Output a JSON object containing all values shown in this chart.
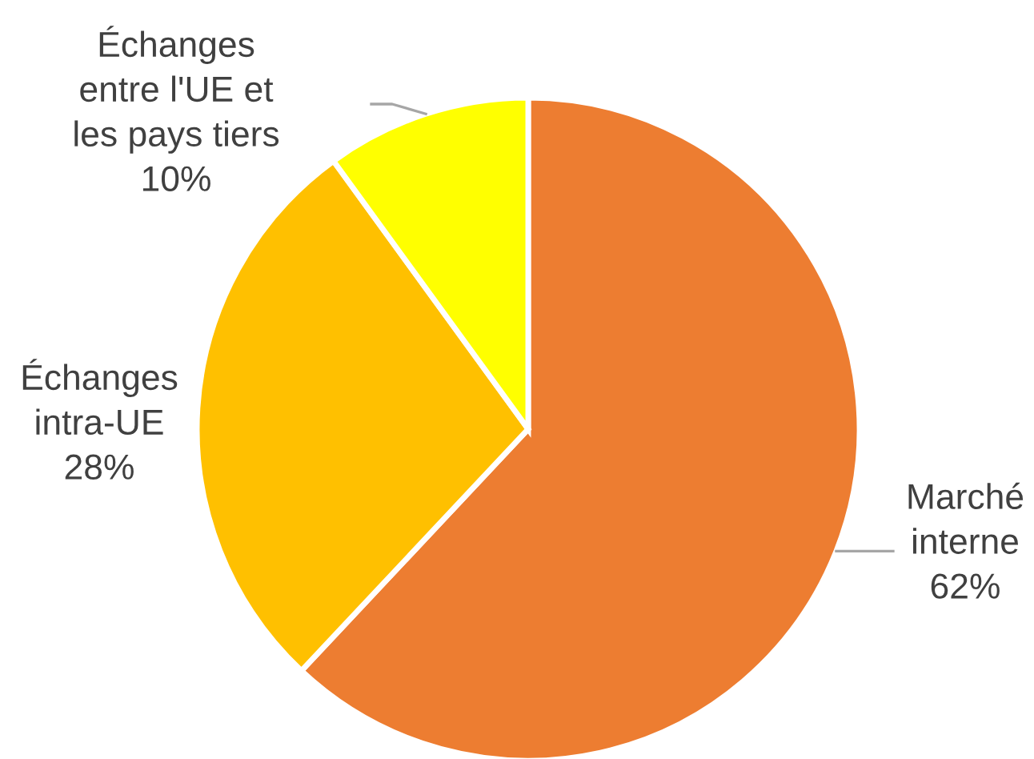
{
  "chart_data": {
    "type": "pie",
    "categories": [
      "Marché\ninterne",
      "Échanges\nintra-UE",
      "Échanges\nentre l'UE et\nles pays tiers"
    ],
    "values": [
      62,
      28,
      10
    ],
    "value_labels": [
      "62%",
      "28%",
      "10%"
    ],
    "colors": [
      "#ed7d31",
      "#ffc000",
      "#ffff00"
    ]
  }
}
